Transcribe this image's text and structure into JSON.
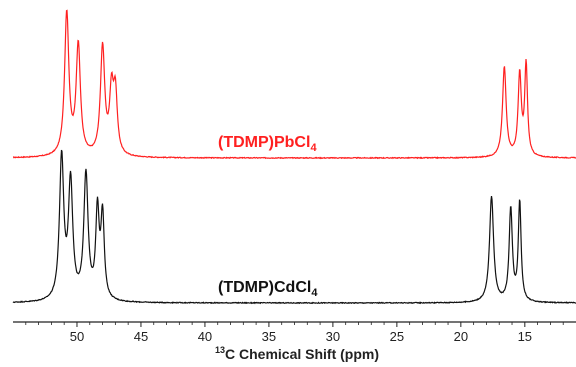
{
  "chart_data": {
    "type": "line",
    "xlabel_sup": "13",
    "xlabel": "C Chemical Shift (ppm)",
    "xlim": [
      55,
      11
    ],
    "x_reversed": true,
    "ticks": [
      50,
      45,
      40,
      35,
      30,
      25,
      20,
      15
    ],
    "grid": false,
    "series": [
      {
        "name": "(TDMP)PbCl",
        "name_subscript": "4",
        "color": "#ff2020",
        "peaks": [
          {
            "ppm": 50.8,
            "height": 1.0,
            "width": 0.2
          },
          {
            "ppm": 49.9,
            "height": 0.77,
            "width": 0.2
          },
          {
            "ppm": 48.0,
            "height": 0.76,
            "width": 0.2
          },
          {
            "ppm": 47.3,
            "height": 0.42,
            "width": 0.18
          },
          {
            "ppm": 47.0,
            "height": 0.42,
            "width": 0.18
          },
          {
            "ppm": 16.6,
            "height": 0.63,
            "width": 0.17
          },
          {
            "ppm": 15.4,
            "height": 0.57,
            "width": 0.15
          },
          {
            "ppm": 14.9,
            "height": 0.64,
            "width": 0.13
          }
        ]
      },
      {
        "name": "(TDMP)CdCl",
        "name_subscript": "4",
        "color": "#111111",
        "peaks": [
          {
            "ppm": 51.2,
            "height": 1.0,
            "width": 0.2
          },
          {
            "ppm": 50.5,
            "height": 0.82,
            "width": 0.2
          },
          {
            "ppm": 49.3,
            "height": 0.88,
            "width": 0.2
          },
          {
            "ppm": 48.4,
            "height": 0.61,
            "width": 0.16
          },
          {
            "ppm": 48.0,
            "height": 0.58,
            "width": 0.16
          },
          {
            "ppm": 17.6,
            "height": 0.74,
            "width": 0.19
          },
          {
            "ppm": 16.1,
            "height": 0.65,
            "width": 0.15
          },
          {
            "ppm": 15.4,
            "height": 0.7,
            "width": 0.13
          }
        ]
      }
    ]
  }
}
